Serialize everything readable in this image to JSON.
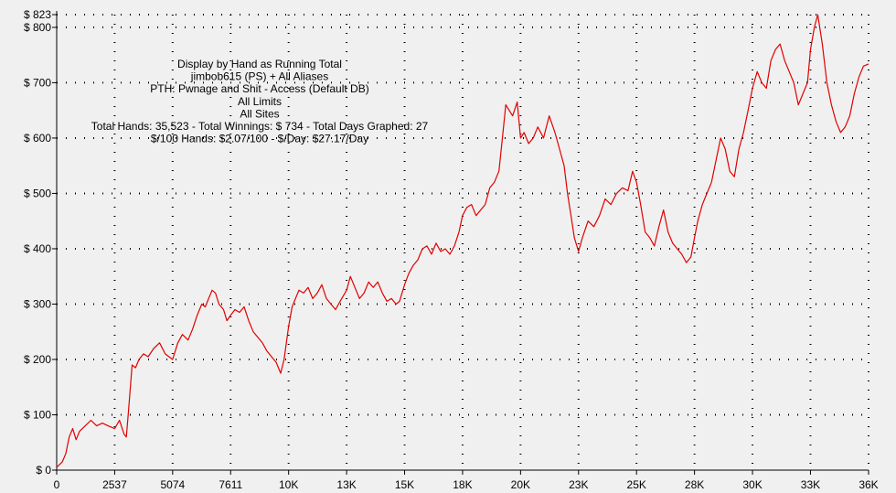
{
  "chart_data": {
    "type": "line",
    "title_lines": [
      "Display by Hand as Running Total",
      "jimbob615 (PS) + All Aliases",
      "PTH: Pwnage and Shit - Access (Default DB)",
      "All Limits",
      "All Sites",
      "Total Hands: 35,523 - Total Winnings: $ 734 - Total Days Graphed: 27",
      "$/100 Hands: $2.07/100 - $/Day: $27.17/Day"
    ],
    "xlabel": "",
    "ylabel": "",
    "xlim": [
      0,
      35523
    ],
    "ylim": [
      0,
      823
    ],
    "x_ticks": [
      {
        "value": 0,
        "label": "0"
      },
      {
        "value": 2537,
        "label": "2537"
      },
      {
        "value": 5074,
        "label": "5074"
      },
      {
        "value": 7611,
        "label": "7611"
      },
      {
        "value": 10148,
        "label": "10K"
      },
      {
        "value": 12685,
        "label": "13K"
      },
      {
        "value": 15222,
        "label": "15K"
      },
      {
        "value": 17759,
        "label": "18K"
      },
      {
        "value": 20296,
        "label": "20K"
      },
      {
        "value": 22833,
        "label": "23K"
      },
      {
        "value": 25370,
        "label": "25K"
      },
      {
        "value": 27907,
        "label": "28K"
      },
      {
        "value": 30444,
        "label": "30K"
      },
      {
        "value": 32981,
        "label": "33K"
      },
      {
        "value": 35523,
        "label": "36K"
      }
    ],
    "y_ticks": [
      {
        "value": 0,
        "label": "$ 0"
      },
      {
        "value": 100,
        "label": "$ 100"
      },
      {
        "value": 200,
        "label": "$ 200"
      },
      {
        "value": 300,
        "label": "$ 300"
      },
      {
        "value": 400,
        "label": "$ 400"
      },
      {
        "value": 500,
        "label": "$ 500"
      },
      {
        "value": 600,
        "label": "$ 600"
      },
      {
        "value": 700,
        "label": "$ 700"
      },
      {
        "value": 800,
        "label": "$ 800"
      },
      {
        "value": 823,
        "label": "$ 823"
      }
    ],
    "grid": true,
    "series": [
      {
        "line_color": "#e00000",
        "points": [
          [
            0,
            5
          ],
          [
            250,
            15
          ],
          [
            400,
            30
          ],
          [
            550,
            60
          ],
          [
            700,
            75
          ],
          [
            850,
            55
          ],
          [
            1000,
            70
          ],
          [
            1250,
            80
          ],
          [
            1500,
            90
          ],
          [
            1750,
            80
          ],
          [
            2000,
            85
          ],
          [
            2250,
            80
          ],
          [
            2537,
            75
          ],
          [
            2750,
            90
          ],
          [
            2950,
            65
          ],
          [
            3050,
            60
          ],
          [
            3150,
            110
          ],
          [
            3300,
            190
          ],
          [
            3450,
            185
          ],
          [
            3600,
            200
          ],
          [
            3800,
            210
          ],
          [
            4000,
            205
          ],
          [
            4250,
            220
          ],
          [
            4500,
            230
          ],
          [
            4750,
            210
          ],
          [
            5074,
            200
          ],
          [
            5300,
            230
          ],
          [
            5500,
            245
          ],
          [
            5750,
            235
          ],
          [
            5950,
            255
          ],
          [
            6150,
            280
          ],
          [
            6350,
            300
          ],
          [
            6500,
            295
          ],
          [
            6650,
            310
          ],
          [
            6800,
            325
          ],
          [
            6950,
            320
          ],
          [
            7100,
            300
          ],
          [
            7300,
            290
          ],
          [
            7450,
            270
          ],
          [
            7611,
            280
          ],
          [
            7800,
            290
          ],
          [
            8000,
            285
          ],
          [
            8200,
            295
          ],
          [
            8400,
            270
          ],
          [
            8600,
            250
          ],
          [
            8800,
            240
          ],
          [
            9000,
            230
          ],
          [
            9200,
            215
          ],
          [
            9400,
            205
          ],
          [
            9600,
            195
          ],
          [
            9800,
            175
          ],
          [
            9950,
            200
          ],
          [
            10148,
            260
          ],
          [
            10300,
            295
          ],
          [
            10450,
            310
          ],
          [
            10600,
            325
          ],
          [
            10800,
            320
          ],
          [
            11000,
            330
          ],
          [
            11200,
            310
          ],
          [
            11400,
            320
          ],
          [
            11600,
            335
          ],
          [
            11800,
            310
          ],
          [
            12000,
            300
          ],
          [
            12200,
            290
          ],
          [
            12400,
            305
          ],
          [
            12685,
            325
          ],
          [
            12850,
            350
          ],
          [
            13050,
            330
          ],
          [
            13250,
            310
          ],
          [
            13450,
            320
          ],
          [
            13650,
            340
          ],
          [
            13850,
            330
          ],
          [
            14050,
            340
          ],
          [
            14250,
            320
          ],
          [
            14450,
            305
          ],
          [
            14650,
            310
          ],
          [
            14850,
            300
          ],
          [
            15000,
            305
          ],
          [
            15222,
            335
          ],
          [
            15400,
            355
          ],
          [
            15600,
            370
          ],
          [
            15800,
            380
          ],
          [
            16000,
            400
          ],
          [
            16200,
            405
          ],
          [
            16400,
            390
          ],
          [
            16600,
            410
          ],
          [
            16800,
            395
          ],
          [
            17000,
            400
          ],
          [
            17200,
            390
          ],
          [
            17400,
            405
          ],
          [
            17600,
            430
          ],
          [
            17759,
            460
          ],
          [
            17950,
            475
          ],
          [
            18150,
            480
          ],
          [
            18350,
            460
          ],
          [
            18550,
            470
          ],
          [
            18750,
            480
          ],
          [
            18950,
            510
          ],
          [
            19150,
            520
          ],
          [
            19350,
            540
          ],
          [
            19500,
            600
          ],
          [
            19650,
            660
          ],
          [
            19800,
            650
          ],
          [
            19950,
            640
          ],
          [
            20150,
            665
          ],
          [
            20296,
            600
          ],
          [
            20450,
            610
          ],
          [
            20650,
            590
          ],
          [
            20850,
            600
          ],
          [
            21050,
            620
          ],
          [
            21300,
            600
          ],
          [
            21550,
            640
          ],
          [
            21800,
            610
          ],
          [
            22000,
            580
          ],
          [
            22200,
            550
          ],
          [
            22350,
            500
          ],
          [
            22500,
            460
          ],
          [
            22650,
            420
          ],
          [
            22833,
            395
          ],
          [
            23000,
            420
          ],
          [
            23250,
            450
          ],
          [
            23500,
            440
          ],
          [
            23750,
            460
          ],
          [
            24000,
            490
          ],
          [
            24250,
            480
          ],
          [
            24500,
            500
          ],
          [
            24750,
            510
          ],
          [
            25000,
            505
          ],
          [
            25200,
            540
          ],
          [
            25370,
            520
          ],
          [
            25550,
            480
          ],
          [
            25750,
            430
          ],
          [
            25950,
            420
          ],
          [
            26150,
            405
          ],
          [
            26350,
            440
          ],
          [
            26550,
            470
          ],
          [
            26750,
            430
          ],
          [
            26950,
            410
          ],
          [
            27150,
            400
          ],
          [
            27350,
            390
          ],
          [
            27550,
            375
          ],
          [
            27750,
            385
          ],
          [
            27907,
            420
          ],
          [
            28050,
            450
          ],
          [
            28250,
            480
          ],
          [
            28450,
            500
          ],
          [
            28650,
            520
          ],
          [
            28850,
            560
          ],
          [
            29050,
            600
          ],
          [
            29250,
            580
          ],
          [
            29450,
            540
          ],
          [
            29650,
            530
          ],
          [
            29850,
            580
          ],
          [
            30050,
            610
          ],
          [
            30250,
            650
          ],
          [
            30444,
            690
          ],
          [
            30650,
            720
          ],
          [
            30850,
            700
          ],
          [
            31050,
            690
          ],
          [
            31250,
            740
          ],
          [
            31450,
            760
          ],
          [
            31650,
            770
          ],
          [
            31850,
            740
          ],
          [
            32050,
            720
          ],
          [
            32250,
            700
          ],
          [
            32450,
            660
          ],
          [
            32650,
            680
          ],
          [
            32850,
            700
          ],
          [
            32981,
            760
          ],
          [
            33150,
            800
          ],
          [
            33300,
            823
          ],
          [
            33500,
            770
          ],
          [
            33700,
            700
          ],
          [
            33900,
            660
          ],
          [
            34100,
            630
          ],
          [
            34300,
            610
          ],
          [
            34500,
            620
          ],
          [
            34700,
            640
          ],
          [
            34900,
            680
          ],
          [
            35100,
            710
          ],
          [
            35300,
            730
          ],
          [
            35523,
            734
          ]
        ]
      }
    ]
  }
}
